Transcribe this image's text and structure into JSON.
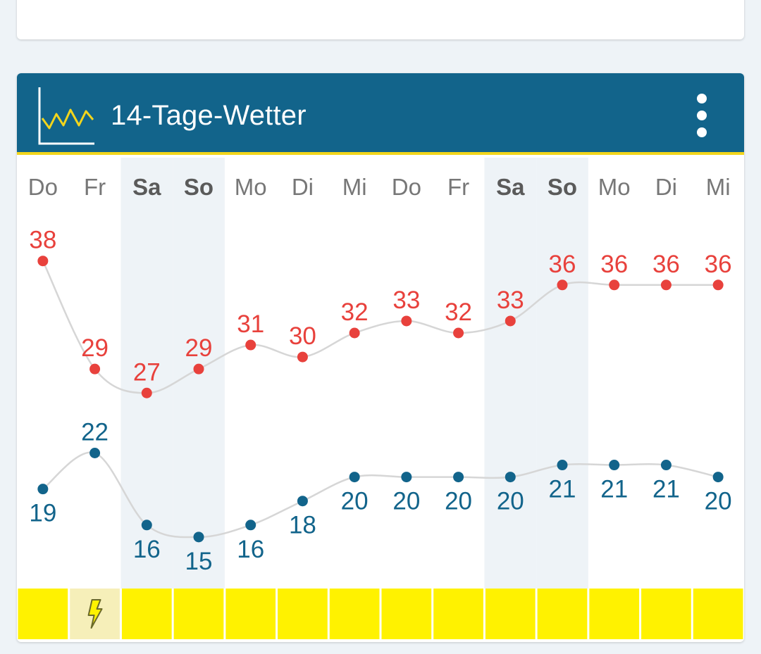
{
  "header": {
    "title": "14-Tage-Wetter",
    "icon": "chart-line-icon",
    "menu_icon": "more-vertical-icon"
  },
  "chart_data": {
    "type": "line",
    "title": "",
    "x": [
      "Do",
      "Fr",
      "Sa",
      "So",
      "Mo",
      "Di",
      "Mi",
      "Do",
      "Fr",
      "Sa",
      "So",
      "Mo",
      "Di",
      "Mi"
    ],
    "weekend": [
      false,
      false,
      true,
      true,
      false,
      false,
      false,
      false,
      false,
      true,
      true,
      false,
      false,
      false
    ],
    "series": [
      {
        "values": [
          38,
          29,
          27,
          29,
          31,
          30,
          32,
          33,
          32,
          33,
          36,
          36,
          36,
          36
        ],
        "color": "#e8413c"
      },
      {
        "values": [
          19,
          22,
          16,
          15,
          16,
          18,
          20,
          20,
          20,
          20,
          21,
          21,
          21,
          20
        ],
        "color": "#12648b"
      }
    ],
    "weather_icons": [
      "",
      "thunderstorm-icon",
      "",
      "",
      "",
      "",
      "",
      "",
      "",
      "",
      "",
      "",
      "",
      ""
    ],
    "weather_colors": {
      "sunny": "#fff200",
      "storm": "#f6efb9"
    },
    "line_color": "#d6d6d6",
    "weekend_shade": "#eef3f7",
    "legend": "none",
    "grid": false
  }
}
